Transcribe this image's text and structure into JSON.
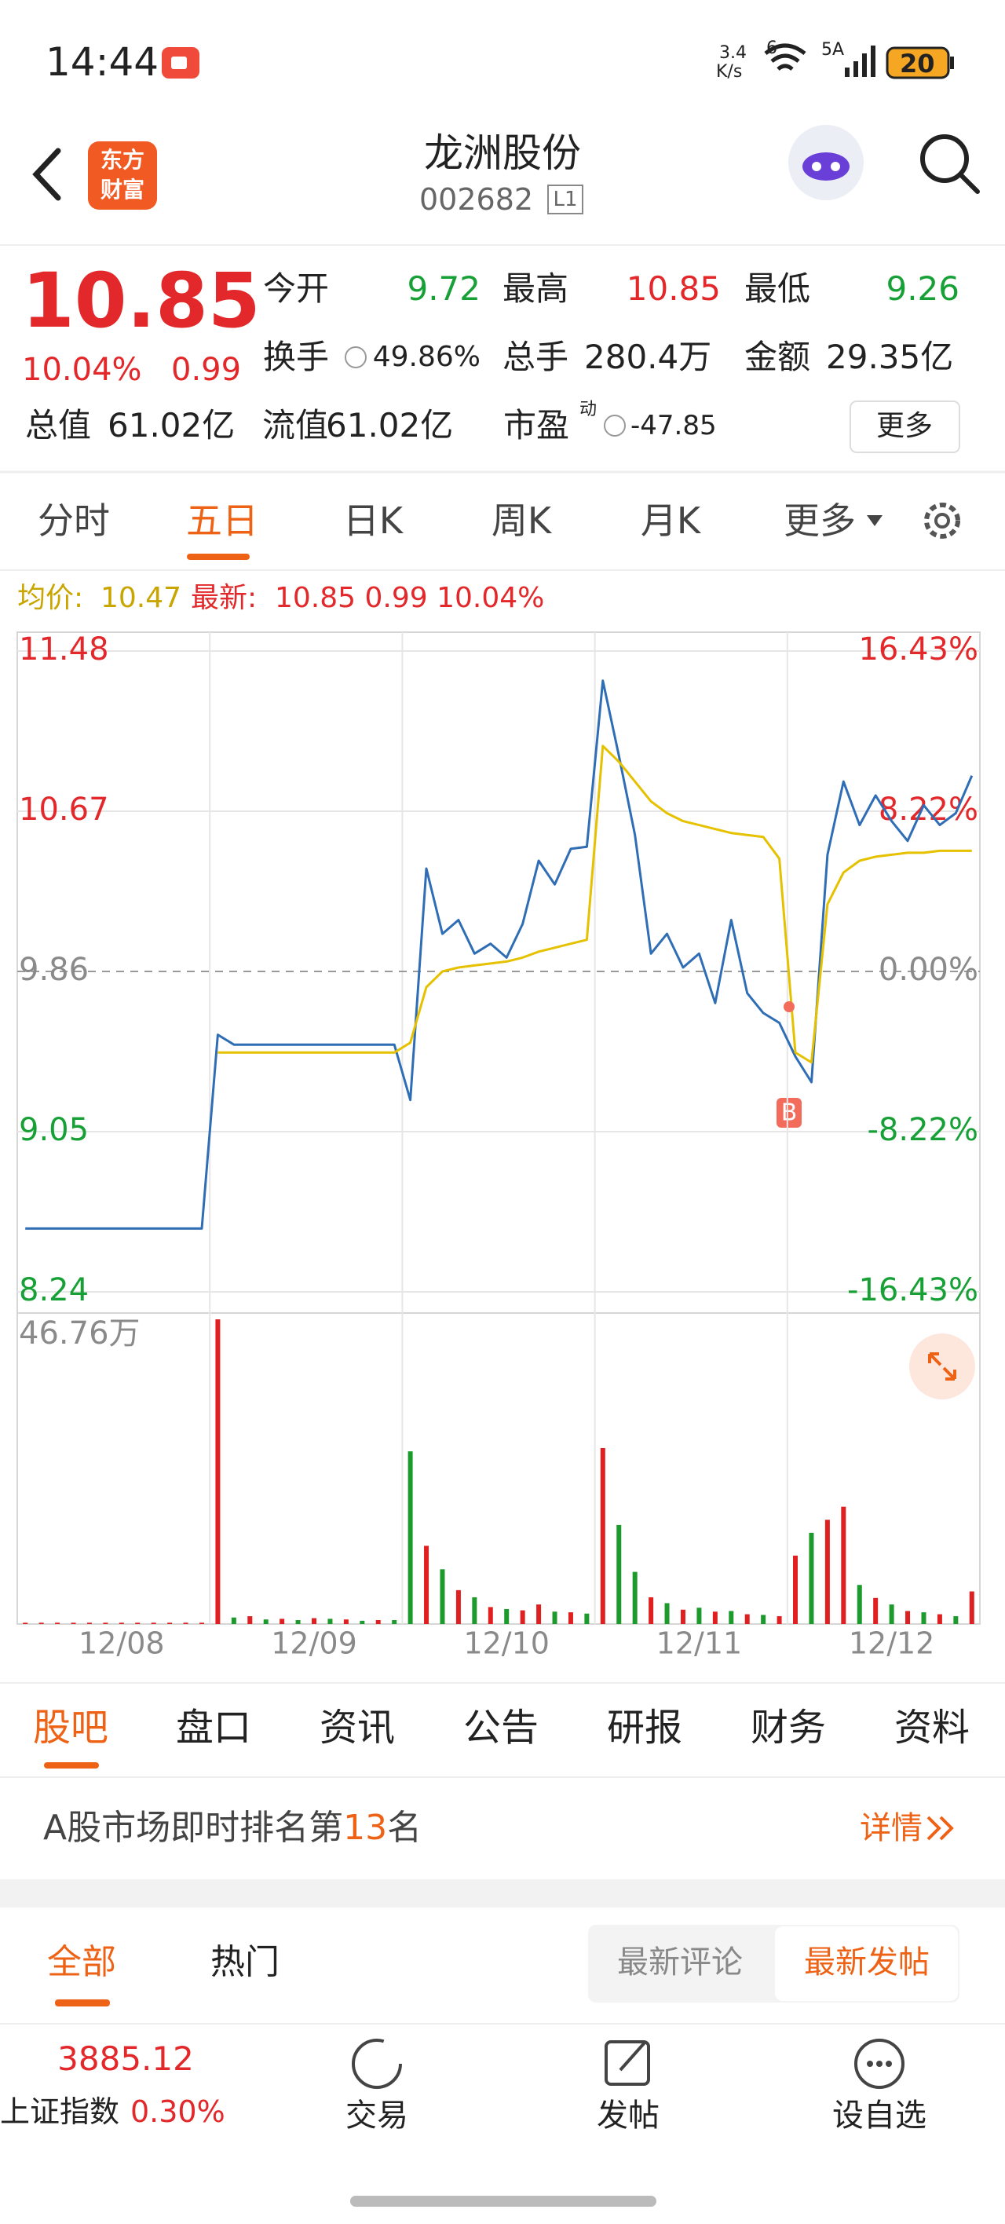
{
  "status_bar": {
    "time": "14:44",
    "speed": "3.4",
    "speed_unit": "K/s",
    "wifi_badge": "6",
    "signal_badge": "5A",
    "battery": "20"
  },
  "header": {
    "logo_line1": "东方",
    "logo_line2": "财富",
    "title": "龙洲股份",
    "code": "002682",
    "level": "L1"
  },
  "quote": {
    "price": "10.85",
    "change_pct": "10.04%",
    "change": "0.99",
    "fields": [
      {
        "label": "今开",
        "value": "9.72"
      },
      {
        "label": "最高",
        "value": "10.85"
      },
      {
        "label": "最低",
        "value": "9.26"
      },
      {
        "label": "换手",
        "value": "49.86%"
      },
      {
        "label": "总手",
        "value": "280.4万"
      },
      {
        "label": "金额",
        "value": "29.35亿"
      },
      {
        "label": "总值",
        "value": "61.02亿"
      },
      {
        "label": "流值",
        "value": "61.02亿"
      },
      {
        "label": "市盈",
        "label_sup": "动",
        "value": "-47.85"
      }
    ],
    "more": "更多"
  },
  "period_tabs": [
    "分时",
    "五日",
    "日K",
    "周K",
    "月K",
    "更多"
  ],
  "chart_data": {
    "type": "line",
    "avg_label": "均价:",
    "avg_value": "10.47",
    "latest_label": "最新:",
    "latest_value": "10.85 0.99 10.04%",
    "categories": [
      null,
      null,
      null,
      null,
      null,
      null,
      "12/08",
      null,
      null,
      null,
      null,
      null,
      null,
      null,
      null,
      null,
      null,
      null,
      "12/09",
      null,
      null,
      null,
      null,
      null,
      null,
      null,
      null,
      null,
      null,
      null,
      "12/10",
      null,
      null,
      null,
      null,
      null,
      null,
      null,
      null,
      null,
      null,
      null,
      "12/11",
      null,
      null,
      null,
      null,
      null,
      null,
      null,
      null,
      null,
      null,
      null,
      "12/12",
      null,
      null,
      null,
      null,
      null
    ],
    "ylim": [
      8.24,
      11.48
    ],
    "yticks": [
      11.48,
      10.67,
      9.86,
      9.05,
      8.24
    ],
    "y2lim": [
      -16.43,
      16.43
    ],
    "y2ticks": [
      {
        "value": 16.43,
        "label": "16.43%"
      },
      {
        "value": 8.22,
        "label": "8.22%"
      },
      {
        "value": 0,
        "label": "0.00%"
      },
      {
        "value": -8.22,
        "label": "-8.22%"
      },
      {
        "value": -16.43,
        "label": "-16.43%"
      }
    ],
    "grid": true,
    "series": [
      {
        "color": "#2f6db5",
        "values": [
          8.56,
          8.56,
          8.56,
          8.56,
          8.56,
          8.56,
          8.56,
          8.56,
          8.56,
          8.56,
          8.56,
          8.56,
          9.54,
          9.49,
          9.49,
          9.49,
          9.49,
          9.49,
          9.49,
          9.49,
          9.49,
          9.49,
          9.49,
          9.49,
          9.21,
          10.38,
          10.05,
          10.12,
          9.95,
          10.0,
          9.93,
          10.1,
          10.42,
          10.3,
          10.48,
          10.49,
          11.33,
          10.95,
          10.55,
          9.95,
          10.05,
          9.88,
          9.95,
          9.7,
          10.12,
          9.75,
          9.65,
          9.6,
          9.43,
          9.3,
          10.45,
          10.82,
          10.6,
          10.75,
          10.62,
          10.52,
          10.7,
          10.6,
          10.66,
          10.85
        ]
      },
      {
        "color": "#e5c100",
        "values": [
          null,
          null,
          null,
          null,
          null,
          null,
          null,
          null,
          null,
          null,
          null,
          null,
          9.45,
          9.45,
          9.45,
          9.45,
          9.45,
          9.45,
          9.45,
          9.45,
          9.45,
          9.45,
          9.45,
          9.45,
          9.5,
          9.78,
          9.86,
          9.88,
          9.89,
          9.9,
          9.91,
          9.93,
          9.96,
          9.98,
          10.0,
          10.02,
          11.0,
          10.92,
          10.82,
          10.72,
          10.66,
          10.62,
          10.6,
          10.58,
          10.56,
          10.55,
          10.54,
          10.43,
          9.45,
          9.4,
          10.2,
          10.36,
          10.42,
          10.44,
          10.45,
          10.46,
          10.46,
          10.47,
          10.47,
          10.47
        ]
      }
    ],
    "marker": "B",
    "volume": {
      "ylim": [
        0,
        46.76
      ],
      "yticks": [
        {
          "value": 46.76,
          "label": "46.76万"
        }
      ],
      "series": [
        {
          "color": "#e02020",
          "values": [
            0.2,
            0.2,
            0.2,
            0.2,
            0.2,
            0.2,
            0.2,
            0.2,
            0.2,
            0.2,
            0.2,
            0.2,
            46.76,
            null,
            1.2,
            null,
            0.8,
            null,
            0.9,
            null,
            0.7,
            null,
            0.6,
            null,
            null,
            12.0,
            null,
            5.2,
            null,
            2.6,
            null,
            2.1,
            3.0,
            null,
            1.8,
            null,
            27.0,
            null,
            null,
            4.1,
            null,
            2.2,
            null,
            1.9,
            null,
            1.5,
            null,
            1.2,
            10.5,
            null,
            16.0,
            18.0,
            null,
            4.0,
            null,
            2.0,
            null,
            1.5,
            null,
            5.0
          ]
        },
        {
          "color": "#1c9a2c",
          "values": [
            null,
            null,
            null,
            null,
            null,
            null,
            null,
            null,
            null,
            null,
            null,
            null,
            null,
            1.0,
            null,
            0.7,
            null,
            0.6,
            null,
            0.8,
            null,
            0.5,
            null,
            0.6,
            26.5,
            null,
            8.4,
            null,
            4.1,
            null,
            2.3,
            null,
            null,
            1.9,
            null,
            1.6,
            null,
            15.2,
            8.0,
            null,
            3.2,
            null,
            2.5,
            null,
            2.0,
            null,
            1.4,
            null,
            null,
            14.0,
            null,
            null,
            6.0,
            null,
            3.0,
            null,
            1.8,
            null,
            1.2,
            null
          ]
        }
      ]
    }
  },
  "section_tabs": [
    "股吧",
    "盘口",
    "资讯",
    "公告",
    "研报",
    "财务",
    "资料"
  ],
  "ranking": {
    "prefix": "A股市场即时排名第",
    "rank": "13",
    "suffix": "名",
    "details": "详情"
  },
  "post_tabs": {
    "tabs": [
      "全部",
      "热门"
    ],
    "sort": [
      "最新评论",
      "最新发帖"
    ]
  },
  "bottom_bar": {
    "index_value": "3885.12",
    "index_name": "上证指数",
    "index_change": "0.30%",
    "actions": [
      "交易",
      "发帖",
      "设自选"
    ]
  }
}
